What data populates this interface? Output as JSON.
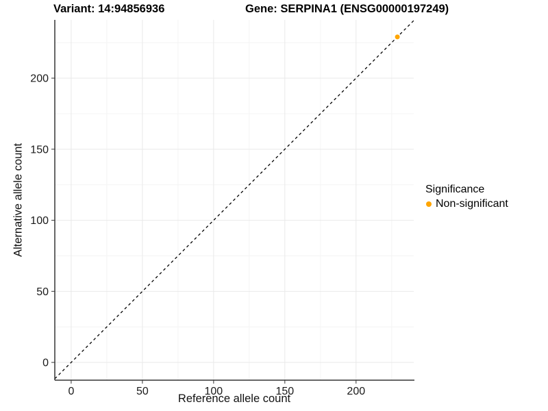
{
  "header": {
    "variant_title": "Variant: 14:94856936",
    "gene_title": "Gene: SERPINA1 (ENSG00000197249)"
  },
  "chart_data": {
    "type": "scatter",
    "title": "Variant: 14:94856936 / Gene: SERPINA1 (ENSG00000197249)",
    "xlabel": "Reference allele count",
    "ylabel": "Alternative allele count",
    "xlim": [
      -11.5,
      240.5
    ],
    "ylim": [
      -12.5,
      241
    ],
    "xticks": [
      0,
      50,
      100,
      150,
      200
    ],
    "yticks": [
      0,
      50,
      100,
      150,
      200
    ],
    "xminor": [
      25,
      75,
      125,
      175,
      225
    ],
    "yminor": [
      25,
      75,
      125,
      175,
      225
    ],
    "grid": "major and minor gridlines, white background, left+bottom axis lines only",
    "points": [
      {
        "x": 229,
        "y": 229,
        "series": "Non-significant"
      }
    ],
    "identity_line": {
      "slope": 1,
      "intercept": 0,
      "style": "dashed",
      "color": "#000000"
    },
    "legend": {
      "title": "Significance",
      "position": "right",
      "entries": [
        {
          "label": "Non-significant",
          "color": "#FFA500"
        }
      ]
    }
  },
  "colors": {
    "background": "#FFFFFF",
    "axis_line": "#333333",
    "tick_mark": "#333333",
    "tick_text": "#1A1A1A",
    "grid_major": "#E9E9E9",
    "grid_minor": "#F4F4F4",
    "point": "#FFA500"
  }
}
